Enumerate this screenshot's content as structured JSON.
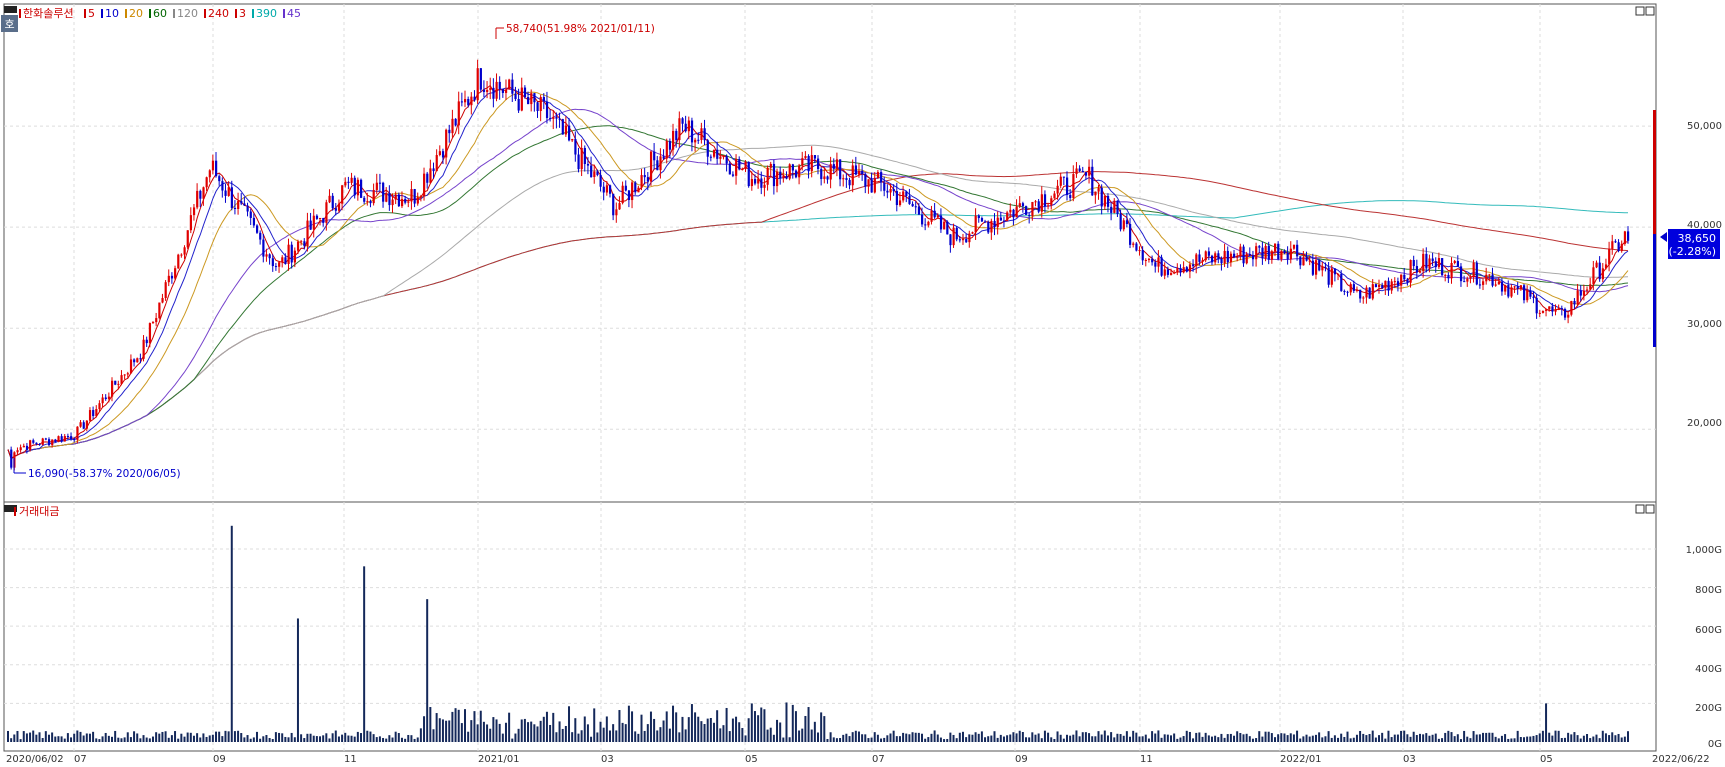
{
  "main_panel": {
    "corner_badge": "호",
    "legend": [
      {
        "label": "한화솔루션",
        "color": "#cc0000"
      },
      {
        "label": "5",
        "color": "#cc0000"
      },
      {
        "label": "10",
        "color": "#0000cc"
      },
      {
        "label": "20",
        "color": "#cc8800"
      },
      {
        "label": "60",
        "color": "#006600"
      },
      {
        "label": "120",
        "color": "#888888"
      },
      {
        "label": "240",
        "color": "#cc0000"
      },
      {
        "label": "3",
        "color": "#cc0000"
      },
      {
        "label": "390",
        "color": "#00aaaa"
      },
      {
        "label": "45",
        "color": "#6633cc"
      }
    ],
    "high_annotation": "58,740(51.98% 2021/01/11)",
    "low_annotation": "16,090(-58.37% 2020/06/05)",
    "price_box": {
      "price": "38,650",
      "change": "(-2.28%)"
    },
    "y_ticks": [
      "50,000",
      "40,000",
      "30,000",
      "20,000"
    ]
  },
  "volume_panel": {
    "title": "거래대금",
    "y_ticks": [
      "1,000G",
      "800G",
      "600G",
      "400G",
      "200G",
      "0G"
    ]
  },
  "x_axis": {
    "labels": [
      "2020/06/02",
      "07",
      "09",
      "11",
      "2021/01",
      "03",
      "05",
      "07",
      "09",
      "11",
      "2022/01",
      "03",
      "05",
      "2022/06/22"
    ]
  },
  "colors": {
    "up": "#e00000",
    "down": "#0000cc",
    "ma5": "#cc0000",
    "ma10": "#2222cc",
    "ma20": "#cc9922",
    "ma45": "#7744cc",
    "ma60": "#337733",
    "ma120": "#aaaaaa",
    "ma240": "#bb3333",
    "ma390": "#33bbbb",
    "volume": "#14285a"
  },
  "chart_data": [
    {
      "type": "candlestick",
      "title": "한화솔루션",
      "x_range": [
        "2020/06/02",
        "2022/06/22"
      ],
      "ylim": [
        13000,
        60500
      ],
      "y_ticks": [
        20000,
        30000,
        40000,
        50000
      ],
      "grid": true,
      "series": [
        {
          "name": "한화솔루션",
          "dates": [
            "2020/06",
            "2020/07",
            "2020/08",
            "2020/09",
            "2020/10",
            "2020/11",
            "2020/12",
            "2021/01",
            "2021/02",
            "2021/03",
            "2021/04",
            "2021/05",
            "2021/06",
            "2021/07",
            "2021/08",
            "2021/09",
            "2021/10",
            "2021/11",
            "2021/12",
            "2022/01",
            "2022/02",
            "2022/03",
            "2022/04",
            "2022/05",
            "2022/06"
          ],
          "close": [
            18000,
            19500,
            28000,
            46000,
            36000,
            44000,
            43000,
            55000,
            51000,
            42000,
            50000,
            45000,
            46000,
            44000,
            39000,
            42000,
            45000,
            36000,
            37000,
            38000,
            33000,
            36500,
            35000,
            31000,
            39500
          ]
        },
        {
          "name": "5",
          "values": []
        },
        {
          "name": "240",
          "values": []
        },
        {
          "name": "390",
          "values": []
        }
      ],
      "annotations": [
        {
          "text": "58,740(51.98% 2021/01/11)",
          "x": "2021/01/11",
          "y": 58740
        },
        {
          "text": "16,090(-58.37% 2020/06/05)",
          "x": "2020/06/05",
          "y": 16090
        }
      ],
      "last_price": 38650,
      "last_change_pct": -2.28
    },
    {
      "type": "bar",
      "title": "거래대금",
      "ylim": [
        0,
        1150
      ],
      "y_ticks": [
        0,
        200,
        400,
        600,
        800,
        1000
      ],
      "unit": "G",
      "peaks": [
        {
          "x": "2020/09",
          "value": 1120
        },
        {
          "x": "2020/11",
          "value": 910
        },
        {
          "x": "2020/12",
          "value": 740
        },
        {
          "x": "2020/10",
          "value": 640
        },
        {
          "x": "2022/05",
          "value": 200
        }
      ]
    }
  ]
}
